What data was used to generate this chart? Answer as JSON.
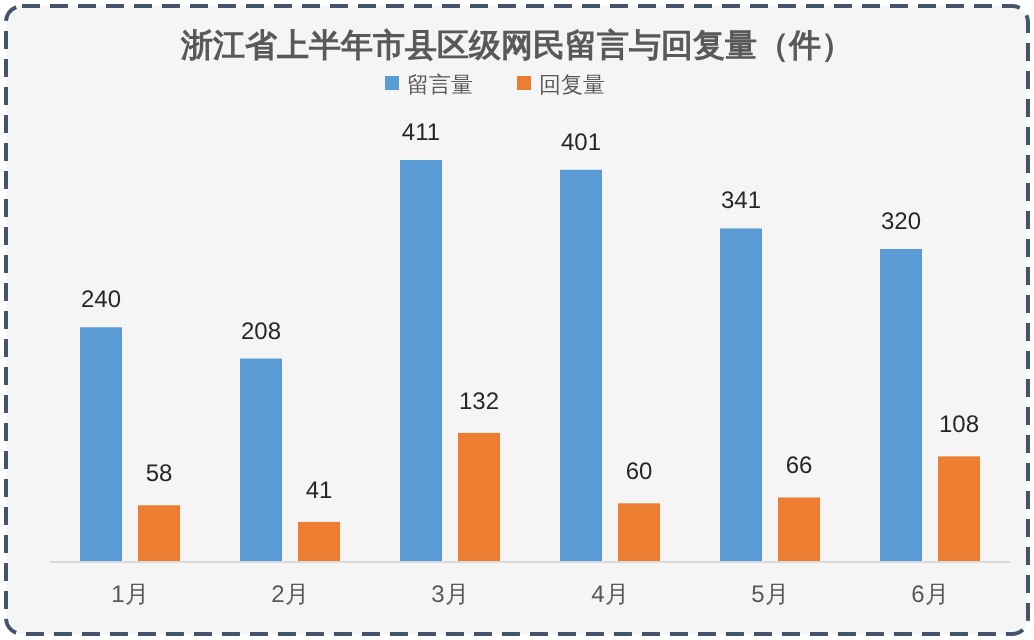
{
  "chart_data": {
    "type": "bar",
    "title": "浙江省上半年市县区级网民留言与回复量（件）",
    "categories": [
      "1月",
      "2月",
      "3月",
      "4月",
      "5月",
      "6月"
    ],
    "series": [
      {
        "name": "留言量",
        "color": "#5b9bd5",
        "values": [
          240,
          208,
          411,
          401,
          341,
          320
        ]
      },
      {
        "name": "回复量",
        "color": "#ed7d31",
        "values": [
          58,
          41,
          132,
          60,
          66,
          108
        ]
      }
    ],
    "data_labels": true,
    "legend": "top",
    "grid": false
  }
}
